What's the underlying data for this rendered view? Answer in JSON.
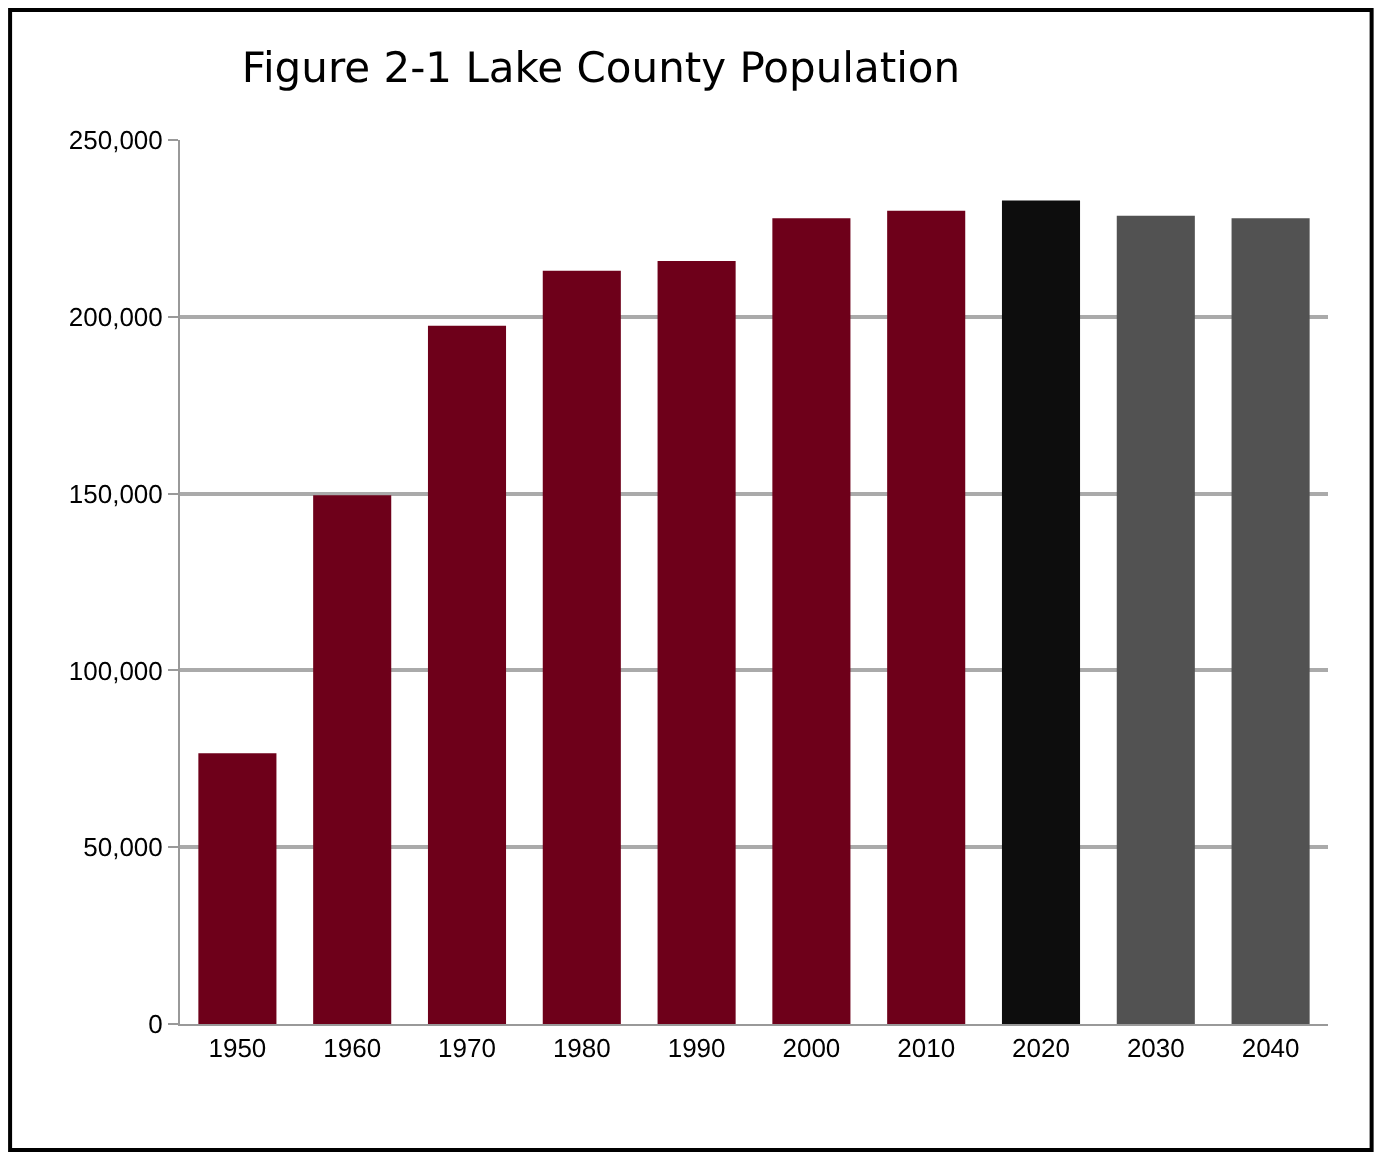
{
  "chart_data": {
    "type": "bar",
    "title": "Figure 2-1 Lake County Population",
    "categories": [
      "1950",
      "1960",
      "1970",
      "1980",
      "1990",
      "2000",
      "2010",
      "2020",
      "2030",
      "2040"
    ],
    "values": [
      76600,
      149500,
      197500,
      213000,
      215800,
      227900,
      230000,
      232900,
      228600,
      227900
    ],
    "colors": [
      "#6e001a",
      "#6e001a",
      "#6e001a",
      "#6e001a",
      "#6e001a",
      "#6e001a",
      "#6e001a",
      "#0d0d0d",
      "#525252",
      "#525252"
    ],
    "ylim": [
      0,
      250000
    ],
    "yticks": [
      {
        "value": 0,
        "label": "0"
      },
      {
        "value": 50000,
        "label": "50,000"
      },
      {
        "value": 100000,
        "label": "100,000"
      },
      {
        "value": 150000,
        "label": "150,000"
      },
      {
        "value": 200000,
        "label": "200,000"
      },
      {
        "value": 250000,
        "label": "250,000"
      }
    ],
    "grid": "y"
  }
}
